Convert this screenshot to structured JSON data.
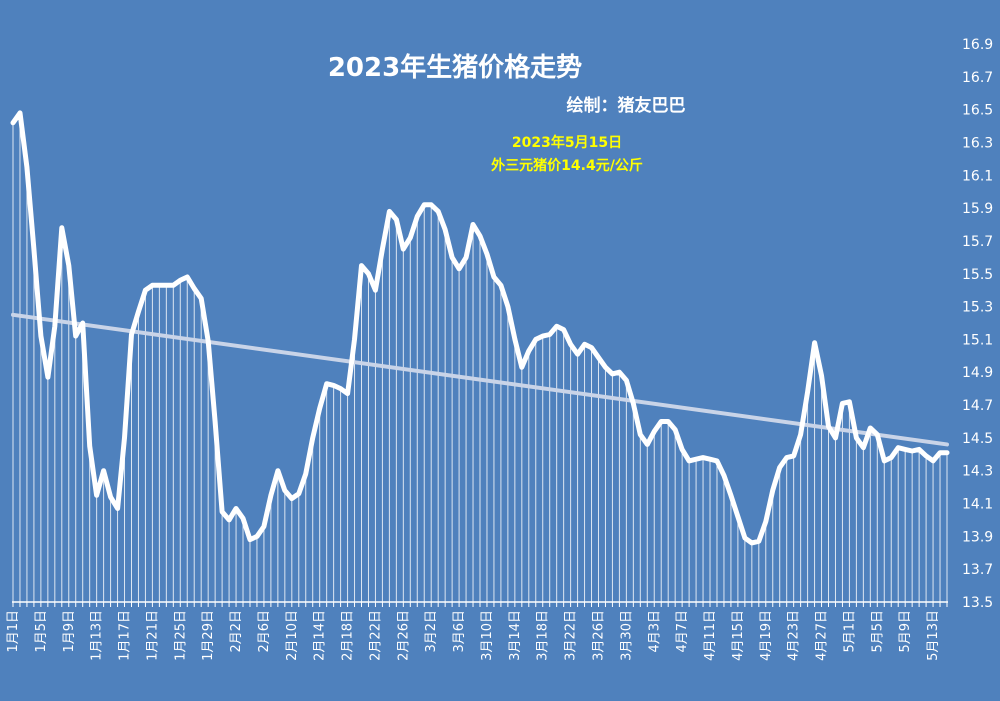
{
  "chart_data": {
    "type": "line",
    "title": "2023年生猪价格走势",
    "subtitle": "绘制：猪友巴巴",
    "annotation": [
      "2023年5月15日",
      "外三元猪价14.4元/公斤"
    ],
    "ylim": [
      13.5,
      17.0
    ],
    "y_ticks": [
      "13.5",
      "13.7",
      "13.9",
      "14.1",
      "14.3",
      "14.5",
      "14.7",
      "14.9",
      "15.1",
      "15.3",
      "15.5",
      "15.7",
      "15.9",
      "16.1",
      "16.3",
      "16.5",
      "16.7",
      "16.9"
    ],
    "x_tick_labels": [
      "1月1日",
      "1月5日",
      "1月9日",
      "1月13日",
      "1月17日",
      "1月21日",
      "1月25日",
      "1月29日",
      "2月2日",
      "2月6日",
      "2月10日",
      "2月14日",
      "2月18日",
      "2月22日",
      "2月26日",
      "3月2日",
      "3月6日",
      "3月10日",
      "3月14日",
      "3月18日",
      "3月22日",
      "3月26日",
      "3月30日",
      "4月3日",
      "4月7日",
      "4月11日",
      "4月15日",
      "4月19日",
      "4月23日",
      "4月27日",
      "5月1日",
      "5月5日",
      "5月9日",
      "5月13日"
    ],
    "series": [
      {
        "values": [
          16.42,
          16.48,
          16.15,
          15.65,
          15.12,
          14.87,
          15.18,
          15.78,
          15.55,
          15.12,
          15.2,
          14.45,
          14.15,
          14.3,
          14.14,
          14.07,
          14.5,
          15.13,
          15.27,
          15.4,
          15.43,
          15.43,
          15.43,
          15.43,
          15.46,
          15.48,
          15.41,
          15.35,
          15.09,
          14.6,
          14.05,
          14.0,
          14.07,
          14.01,
          13.88,
          13.9,
          13.96,
          14.15,
          14.3,
          14.18,
          14.13,
          14.16,
          14.28,
          14.5,
          14.68,
          14.83,
          14.82,
          14.8,
          14.77,
          15.1,
          15.55,
          15.5,
          15.4,
          15.65,
          15.88,
          15.83,
          15.65,
          15.72,
          15.85,
          15.92,
          15.92,
          15.88,
          15.77,
          15.6,
          15.53,
          15.6,
          15.8,
          15.73,
          15.62,
          15.48,
          15.43,
          15.3,
          15.1,
          14.93,
          15.03,
          15.1,
          15.12,
          15.13,
          15.18,
          15.16,
          15.07,
          15.01,
          15.07,
          15.05,
          14.99,
          14.93,
          14.89,
          14.9,
          14.85,
          14.71,
          14.52,
          14.46,
          14.54,
          14.6,
          14.6,
          14.55,
          14.43,
          14.36,
          14.37,
          14.38,
          14.37,
          14.36,
          14.27,
          14.15,
          14.02,
          13.89,
          13.86,
          13.87,
          13.99,
          14.18,
          14.32,
          14.38,
          14.39,
          14.52,
          14.78,
          15.08,
          14.88,
          14.57,
          14.5,
          14.71,
          14.72,
          14.5,
          14.44,
          14.56,
          14.52,
          14.36,
          14.38,
          14.44,
          14.43,
          14.42,
          14.43,
          14.39,
          14.36,
          14.41,
          14.41
        ]
      }
    ],
    "trendline": [
      15.25,
      14.46
    ],
    "colors": {
      "background": "#4f81bd",
      "line": "#ffffff",
      "trend": "#c9d4e8",
      "annotation": "#ffff00"
    }
  }
}
